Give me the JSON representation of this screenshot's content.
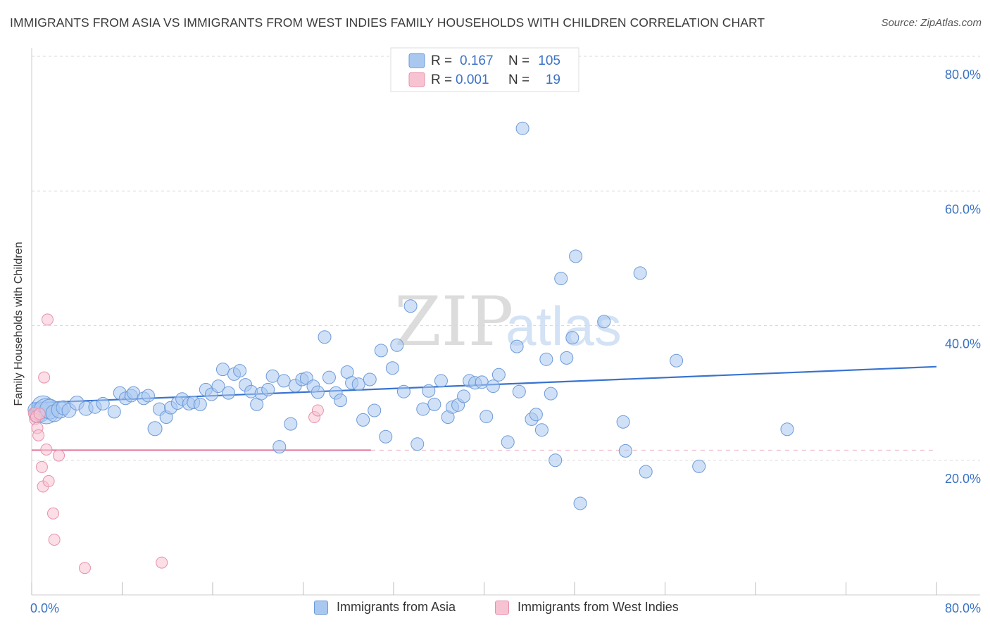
{
  "title": "IMMIGRANTS FROM ASIA VS IMMIGRANTS FROM WEST INDIES FAMILY HOUSEHOLDS WITH CHILDREN CORRELATION CHART",
  "source": "Source: ZipAtlas.com",
  "watermark": {
    "zip": "ZIP",
    "atlas": "atlas"
  },
  "legend_top": {
    "r_label": "R =",
    "n_label": "N =",
    "rows": [
      {
        "r": "0.167",
        "n": "105"
      },
      {
        "r": "0.001",
        "n": "19"
      }
    ]
  },
  "legend_bottom": [
    {
      "label": "Immigrants from Asia"
    },
    {
      "label": "Immigrants from West Indies"
    }
  ],
  "chart_data": {
    "type": "scatter",
    "ylabel": "Family Households with Children",
    "xlim": [
      0,
      80
    ],
    "ylim": [
      0,
      80
    ],
    "x_tick_labels": [
      "0.0%",
      "80.0%"
    ],
    "y_tick_labels": [
      "20.0%",
      "40.0%",
      "60.0%",
      "80.0%"
    ],
    "y_ticks": [
      20,
      40,
      60,
      80
    ],
    "grid": "horizontal dashed",
    "legend_placement": "top-center",
    "colors": {
      "asia_fill": "#a9c8f0",
      "asia_stroke": "#6d9ad8",
      "asia_line": "#3873d0",
      "wi_fill": "#f7c3d2",
      "wi_stroke": "#e890ab",
      "wi_line": "#e0779a",
      "tick_text": "#3a72c4",
      "r_value": "#3a72c4"
    },
    "series": [
      {
        "name": "Immigrants from Asia",
        "r": 0.167,
        "n": 105,
        "trend": {
          "x": [
            0,
            80
          ],
          "y": [
            28.5,
            33.9
          ],
          "dashed_from": null
        },
        "points": [
          {
            "x": 0.3,
            "y": 27.5,
            "s": 10
          },
          {
            "x": 0.5,
            "y": 26.8,
            "s": 12
          },
          {
            "x": 0.8,
            "y": 27.2,
            "s": 14
          },
          {
            "x": 1.0,
            "y": 27.9,
            "s": 16
          },
          {
            "x": 1.3,
            "y": 27.3,
            "s": 18
          },
          {
            "x": 1.6,
            "y": 27.6,
            "s": 14
          },
          {
            "x": 2.0,
            "y": 27.0,
            "s": 12
          },
          {
            "x": 2.5,
            "y": 27.5,
            "s": 12
          },
          {
            "x": 2.8,
            "y": 27.8,
            "s": 10
          },
          {
            "x": 3.3,
            "y": 27.4,
            "s": 10
          },
          {
            "x": 4.0,
            "y": 28.5,
            "s": 10
          },
          {
            "x": 4.8,
            "y": 27.7,
            "s": 10
          },
          {
            "x": 5.6,
            "y": 27.9,
            "s": 9
          },
          {
            "x": 6.3,
            "y": 28.4,
            "s": 9
          },
          {
            "x": 7.3,
            "y": 27.2,
            "s": 9
          },
          {
            "x": 7.8,
            "y": 30.0,
            "s": 9
          },
          {
            "x": 8.3,
            "y": 29.2,
            "s": 9
          },
          {
            "x": 8.8,
            "y": 29.6,
            "s": 9
          },
          {
            "x": 9.0,
            "y": 30.0,
            "s": 9
          },
          {
            "x": 9.9,
            "y": 29.2,
            "s": 9
          },
          {
            "x": 10.3,
            "y": 29.6,
            "s": 9
          },
          {
            "x": 10.9,
            "y": 24.7,
            "s": 10
          },
          {
            "x": 11.3,
            "y": 27.6,
            "s": 9
          },
          {
            "x": 11.9,
            "y": 26.4,
            "s": 9
          },
          {
            "x": 12.3,
            "y": 27.8,
            "s": 9
          },
          {
            "x": 12.9,
            "y": 28.5,
            "s": 9
          },
          {
            "x": 13.3,
            "y": 29.1,
            "s": 9
          },
          {
            "x": 13.9,
            "y": 28.4,
            "s": 9
          },
          {
            "x": 14.3,
            "y": 28.6,
            "s": 9
          },
          {
            "x": 14.9,
            "y": 28.3,
            "s": 9
          },
          {
            "x": 15.4,
            "y": 30.5,
            "s": 9
          },
          {
            "x": 15.9,
            "y": 29.8,
            "s": 9
          },
          {
            "x": 16.5,
            "y": 31.0,
            "s": 9
          },
          {
            "x": 16.9,
            "y": 33.5,
            "s": 9
          },
          {
            "x": 17.4,
            "y": 30.0,
            "s": 9
          },
          {
            "x": 17.9,
            "y": 32.8,
            "s": 9
          },
          {
            "x": 18.4,
            "y": 33.3,
            "s": 9
          },
          {
            "x": 18.9,
            "y": 31.2,
            "s": 9
          },
          {
            "x": 19.4,
            "y": 30.2,
            "s": 9
          },
          {
            "x": 19.9,
            "y": 28.3,
            "s": 9
          },
          {
            "x": 20.3,
            "y": 29.9,
            "s": 9
          },
          {
            "x": 20.9,
            "y": 30.5,
            "s": 9
          },
          {
            "x": 21.3,
            "y": 32.5,
            "s": 9
          },
          {
            "x": 21.9,
            "y": 22.0,
            "s": 9
          },
          {
            "x": 22.3,
            "y": 31.8,
            "s": 9
          },
          {
            "x": 22.9,
            "y": 25.4,
            "s": 9
          },
          {
            "x": 23.3,
            "y": 31.1,
            "s": 9
          },
          {
            "x": 23.9,
            "y": 32.0,
            "s": 9
          },
          {
            "x": 24.3,
            "y": 32.2,
            "s": 9
          },
          {
            "x": 24.9,
            "y": 31.0,
            "s": 9
          },
          {
            "x": 25.3,
            "y": 30.1,
            "s": 9
          },
          {
            "x": 25.9,
            "y": 38.3,
            "s": 9
          },
          {
            "x": 26.3,
            "y": 32.3,
            "s": 9
          },
          {
            "x": 26.9,
            "y": 30.0,
            "s": 9
          },
          {
            "x": 27.3,
            "y": 28.9,
            "s": 9
          },
          {
            "x": 27.9,
            "y": 33.1,
            "s": 9
          },
          {
            "x": 28.3,
            "y": 31.5,
            "s": 9
          },
          {
            "x": 28.9,
            "y": 31.3,
            "s": 9
          },
          {
            "x": 29.3,
            "y": 26.0,
            "s": 9
          },
          {
            "x": 29.9,
            "y": 32.0,
            "s": 9
          },
          {
            "x": 30.3,
            "y": 27.4,
            "s": 9
          },
          {
            "x": 30.9,
            "y": 36.3,
            "s": 9
          },
          {
            "x": 31.3,
            "y": 23.5,
            "s": 9
          },
          {
            "x": 31.9,
            "y": 33.7,
            "s": 9
          },
          {
            "x": 32.3,
            "y": 37.1,
            "s": 9
          },
          {
            "x": 32.9,
            "y": 30.2,
            "s": 9
          },
          {
            "x": 33.5,
            "y": 42.9,
            "s": 9
          },
          {
            "x": 34.1,
            "y": 22.4,
            "s": 9
          },
          {
            "x": 34.6,
            "y": 27.6,
            "s": 9
          },
          {
            "x": 35.1,
            "y": 30.3,
            "s": 9
          },
          {
            "x": 35.6,
            "y": 28.3,
            "s": 9
          },
          {
            "x": 36.2,
            "y": 31.8,
            "s": 9
          },
          {
            "x": 36.8,
            "y": 26.4,
            "s": 9
          },
          {
            "x": 37.2,
            "y": 27.9,
            "s": 9
          },
          {
            "x": 37.7,
            "y": 28.2,
            "s": 9
          },
          {
            "x": 38.2,
            "y": 29.5,
            "s": 9
          },
          {
            "x": 38.7,
            "y": 31.8,
            "s": 9
          },
          {
            "x": 39.2,
            "y": 31.5,
            "s": 9
          },
          {
            "x": 39.8,
            "y": 31.6,
            "s": 9
          },
          {
            "x": 40.2,
            "y": 26.5,
            "s": 9
          },
          {
            "x": 40.8,
            "y": 31.0,
            "s": 9
          },
          {
            "x": 41.3,
            "y": 32.7,
            "s": 9
          },
          {
            "x": 42.1,
            "y": 22.7,
            "s": 9
          },
          {
            "x": 42.9,
            "y": 36.9,
            "s": 9
          },
          {
            "x": 43.1,
            "y": 30.2,
            "s": 9
          },
          {
            "x": 43.4,
            "y": 69.3,
            "s": 9
          },
          {
            "x": 44.2,
            "y": 26.1,
            "s": 9
          },
          {
            "x": 44.6,
            "y": 26.8,
            "s": 9
          },
          {
            "x": 45.1,
            "y": 24.5,
            "s": 9
          },
          {
            "x": 45.5,
            "y": 35.0,
            "s": 9
          },
          {
            "x": 45.9,
            "y": 29.9,
            "s": 9
          },
          {
            "x": 46.3,
            "y": 20.0,
            "s": 9
          },
          {
            "x": 46.8,
            "y": 47.0,
            "s": 9
          },
          {
            "x": 47.3,
            "y": 35.2,
            "s": 9
          },
          {
            "x": 47.8,
            "y": 38.2,
            "s": 9
          },
          {
            "x": 48.1,
            "y": 50.3,
            "s": 9
          },
          {
            "x": 48.5,
            "y": 13.6,
            "s": 9
          },
          {
            "x": 50.6,
            "y": 40.6,
            "s": 9
          },
          {
            "x": 52.3,
            "y": 25.7,
            "s": 9
          },
          {
            "x": 52.5,
            "y": 21.4,
            "s": 9
          },
          {
            "x": 53.8,
            "y": 47.8,
            "s": 9
          },
          {
            "x": 54.3,
            "y": 18.3,
            "s": 9
          },
          {
            "x": 57.0,
            "y": 34.8,
            "s": 9
          },
          {
            "x": 59.0,
            "y": 19.1,
            "s": 9
          },
          {
            "x": 66.8,
            "y": 24.6,
            "s": 9
          }
        ]
      },
      {
        "name": "Immigrants from West Indies",
        "r": 0.001,
        "n": 19,
        "trend": {
          "x": [
            0,
            80
          ],
          "y": [
            21.5,
            21.5
          ],
          "solid_until": 30
        },
        "points": [
          {
            "x": 0.2,
            "y": 27.0,
            "s": 8
          },
          {
            "x": 0.3,
            "y": 26.1,
            "s": 8
          },
          {
            "x": 0.4,
            "y": 26.5,
            "s": 8
          },
          {
            "x": 0.5,
            "y": 24.8,
            "s": 8
          },
          {
            "x": 0.6,
            "y": 23.7,
            "s": 8
          },
          {
            "x": 0.7,
            "y": 26.9,
            "s": 8
          },
          {
            "x": 0.9,
            "y": 19.0,
            "s": 8
          },
          {
            "x": 1.0,
            "y": 16.1,
            "s": 8
          },
          {
            "x": 1.1,
            "y": 32.3,
            "s": 8
          },
          {
            "x": 1.3,
            "y": 21.6,
            "s": 8
          },
          {
            "x": 1.4,
            "y": 40.9,
            "s": 8
          },
          {
            "x": 1.5,
            "y": 16.9,
            "s": 8
          },
          {
            "x": 1.9,
            "y": 12.1,
            "s": 8
          },
          {
            "x": 2.0,
            "y": 8.2,
            "s": 8
          },
          {
            "x": 2.4,
            "y": 20.7,
            "s": 8
          },
          {
            "x": 4.7,
            "y": 4.0,
            "s": 8
          },
          {
            "x": 11.5,
            "y": 4.8,
            "s": 8
          },
          {
            "x": 25.0,
            "y": 26.4,
            "s": 8
          },
          {
            "x": 25.3,
            "y": 27.4,
            "s": 8
          }
        ]
      }
    ]
  }
}
